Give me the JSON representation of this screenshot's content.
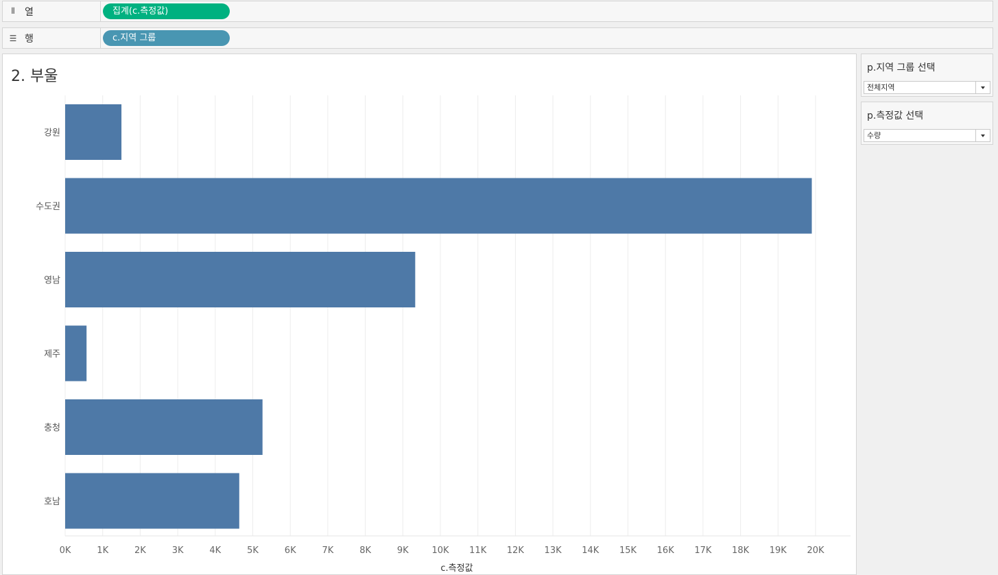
{
  "shelves": {
    "columns": {
      "label": "열",
      "icon": "columns-icon",
      "pill": "집계(c.측정값)",
      "pill_color": "#00b180"
    },
    "rows": {
      "label": "행",
      "icon": "rows-icon",
      "pill": "c.지역 그룹",
      "pill_color": "#4996b2"
    }
  },
  "worksheet": {
    "title": "2. 부울"
  },
  "filters": [
    {
      "title": "p.지역 그룹 선택",
      "value": "전체지역"
    },
    {
      "title": "p.측정값 선택",
      "value": "수량"
    }
  ],
  "chart_data": {
    "type": "bar",
    "orientation": "horizontal",
    "categories": [
      "강원",
      "수도권",
      "영남",
      "제주",
      "충청",
      "호남"
    ],
    "values": [
      1500,
      19900,
      9330,
      570,
      5260,
      4640
    ],
    "xlabel": "c.측정값",
    "ylabel": "",
    "xlim": [
      0,
      21000
    ],
    "xticks": [
      "0K",
      "1K",
      "2K",
      "3K",
      "4K",
      "5K",
      "6K",
      "7K",
      "8K",
      "9K",
      "10K",
      "11K",
      "12K",
      "13K",
      "14K",
      "15K",
      "16K",
      "17K",
      "18K",
      "19K",
      "20K"
    ],
    "bar_color": "#4e79a7",
    "grid": true
  }
}
